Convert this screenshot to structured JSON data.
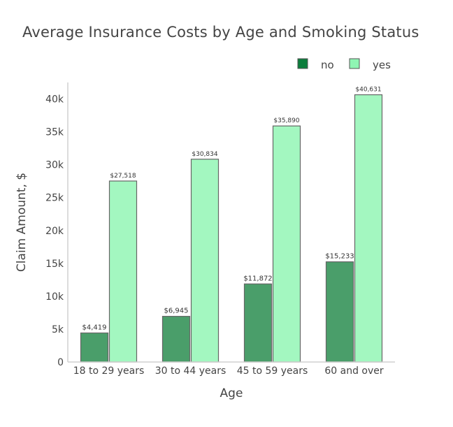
{
  "chart_data": {
    "type": "bar",
    "title": "Average Insurance Costs by Age and Smoking Status",
    "xlabel": "Age",
    "ylabel": "Claim Amount, $",
    "categories": [
      "18 to 29 years",
      "30 to 44 years",
      "45 to 59 years",
      "60 and over"
    ],
    "series": [
      {
        "name": "no",
        "values": [
          4419,
          6945,
          11872,
          15233
        ],
        "labels": [
          "$4,419",
          "$6,945",
          "$11,872",
          "$15,233"
        ],
        "color": "#4a9e6a",
        "legend_color": "#0c7d3c"
      },
      {
        "name": "yes",
        "values": [
          27518,
          30834,
          35890,
          40631
        ],
        "labels": [
          "$27,518",
          "$30,834",
          "$35,890",
          "$40,631"
        ],
        "color": "#a3f7c0",
        "legend_color": "#8ff5b3"
      }
    ],
    "ylim": [
      0,
      42500
    ],
    "yticks": [
      0,
      5000,
      10000,
      15000,
      20000,
      25000,
      30000,
      35000,
      40000
    ],
    "ytick_labels": [
      "0",
      "5k",
      "10k",
      "15k",
      "20k",
      "25k",
      "30k",
      "35k",
      "40k"
    ],
    "grid": false,
    "legend_position": "top-right",
    "bar_edge_color": "#666666"
  }
}
